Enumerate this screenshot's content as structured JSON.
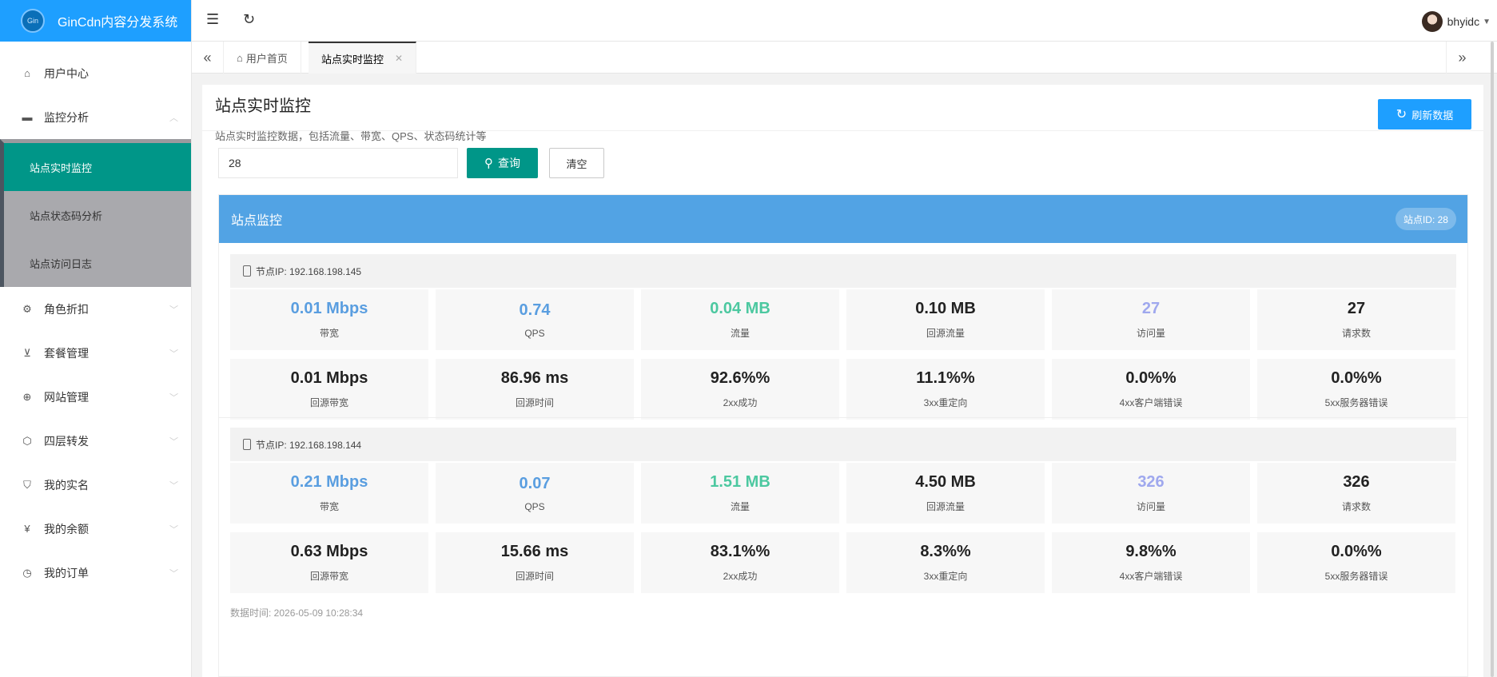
{
  "app": {
    "title": "GinCdn内容分发系统",
    "logo_text": "GinCdn"
  },
  "header": {
    "username": "bhyidc"
  },
  "sidebar": {
    "items": [
      {
        "label": "用户中心",
        "icon": "home-icon"
      },
      {
        "label": "监控分析",
        "icon": "monitor-icon",
        "expanded": true,
        "children": [
          {
            "label": "站点实时监控",
            "active": true
          },
          {
            "label": "站点状态码分析"
          },
          {
            "label": "站点访问日志"
          }
        ]
      },
      {
        "label": "角色折扣",
        "icon": "gear-icon"
      },
      {
        "label": "套餐管理",
        "icon": "cart-icon"
      },
      {
        "label": "网站管理",
        "icon": "globe-icon"
      },
      {
        "label": "四层转发",
        "icon": "cube-icon"
      },
      {
        "label": "我的实名",
        "icon": "shield-check-icon"
      },
      {
        "label": "我的余额",
        "icon": "yen-icon"
      },
      {
        "label": "我的订单",
        "icon": "clock-icon"
      }
    ]
  },
  "tabs": [
    {
      "label": "用户首页",
      "icon": "home-icon"
    },
    {
      "label": "站点实时监控",
      "active": true,
      "closable": true
    }
  ],
  "page": {
    "title": "站点实时监控",
    "description": "站点实时监控数据，包括流量、带宽、QPS、状态码统计等",
    "refresh_label": "刷新数据",
    "search_value": "28",
    "query_label": "查询",
    "clear_label": "清空"
  },
  "panel": {
    "title": "站点监控",
    "site_badge": "站点ID: 28",
    "nodes": [
      {
        "ip_label": "节点IP: 192.168.198.145",
        "metrics": [
          {
            "value": "0.01 Mbps",
            "label": "带宽",
            "color": "blue"
          },
          {
            "value": "0.74",
            "label": "QPS",
            "color": "blue"
          },
          {
            "value": "0.04 MB",
            "label": "流量",
            "color": "teal"
          },
          {
            "value": "0.10 MB",
            "label": "回源流量"
          },
          {
            "value": "27",
            "label": "访问量",
            "color": "purple"
          },
          {
            "value": "27",
            "label": "请求数"
          },
          {
            "value": "0.01 Mbps",
            "label": "回源带宽"
          },
          {
            "value": "86.96 ms",
            "label": "回源时间"
          },
          {
            "value": "92.6%%",
            "label": "2xx成功"
          },
          {
            "value": "11.1%%",
            "label": "3xx重定向"
          },
          {
            "value": "0.0%%",
            "label": "4xx客户端错误"
          },
          {
            "value": "0.0%%",
            "label": "5xx服务器错误"
          }
        ],
        "time": "数据时间: 2026-05-09 10:28:34"
      },
      {
        "ip_label": "节点IP: 192.168.198.144",
        "metrics": [
          {
            "value": "0.21 Mbps",
            "label": "带宽",
            "color": "blue"
          },
          {
            "value": "0.07",
            "label": "QPS",
            "color": "blue"
          },
          {
            "value": "1.51 MB",
            "label": "流量",
            "color": "teal"
          },
          {
            "value": "4.50 MB",
            "label": "回源流量"
          },
          {
            "value": "326",
            "label": "访问量",
            "color": "purple"
          },
          {
            "value": "326",
            "label": "请求数"
          },
          {
            "value": "0.63 Mbps",
            "label": "回源带宽"
          },
          {
            "value": "15.66 ms",
            "label": "回源时间"
          },
          {
            "value": "83.1%%",
            "label": "2xx成功"
          },
          {
            "value": "8.3%%",
            "label": "3xx重定向"
          },
          {
            "value": "9.8%%",
            "label": "4xx客户端错误"
          },
          {
            "value": "0.0%%",
            "label": "5xx服务器错误"
          }
        ],
        "time": "数据时间: 2026-05-09 10:28:34"
      }
    ]
  },
  "colors": {
    "primary": "#1e9fff",
    "active": "#009688",
    "panel_head": "#52a3e4",
    "blue": "#5a9ee0",
    "teal": "#4cc8a0",
    "purple": "#9fa8ee"
  }
}
